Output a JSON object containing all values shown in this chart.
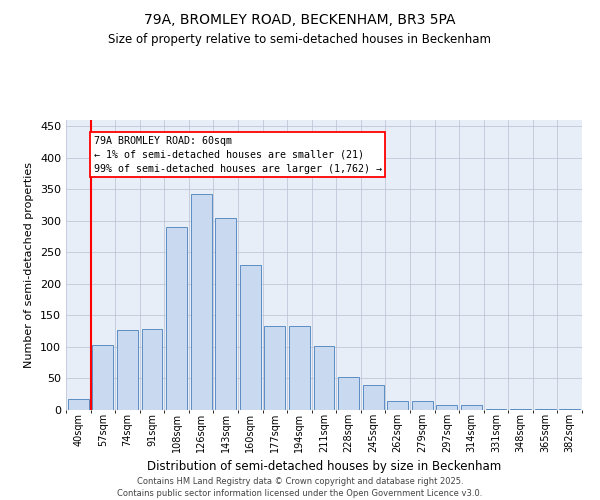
{
  "title1": "79A, BROMLEY ROAD, BECKENHAM, BR3 5PA",
  "title2": "Size of property relative to semi-detached houses in Beckenham",
  "xlabel": "Distribution of semi-detached houses by size in Beckenham",
  "ylabel": "Number of semi-detached properties",
  "categories": [
    "40sqm",
    "57sqm",
    "74sqm",
    "91sqm",
    "108sqm",
    "126sqm",
    "143sqm",
    "160sqm",
    "177sqm",
    "194sqm",
    "211sqm",
    "228sqm",
    "245sqm",
    "262sqm",
    "279sqm",
    "297sqm",
    "314sqm",
    "331sqm",
    "348sqm",
    "365sqm",
    "382sqm"
  ],
  "bar_data": [
    18,
    103,
    127,
    128,
    290,
    342,
    305,
    230,
    133,
    133,
    101,
    52,
    40,
    14,
    14,
    8,
    8,
    2,
    2,
    2,
    2
  ],
  "annotation_title": "79A BROMLEY ROAD: 60sqm",
  "annotation_line1": "← 1% of semi-detached houses are smaller (21)",
  "annotation_line2": "99% of semi-detached houses are larger (1,762) →",
  "vline_x_index": 1,
  "bar_color": "#c9d9ef",
  "bar_edge_color": "#5b8ec4",
  "vline_color": "red",
  "grid_color": "#c0c8d8",
  "bg_color": "#e8eef8",
  "footer": "Contains HM Land Registry data © Crown copyright and database right 2025.\nContains public sector information licensed under the Open Government Licence v3.0.",
  "ylim": [
    0,
    460
  ],
  "yticks": [
    0,
    50,
    100,
    150,
    200,
    250,
    300,
    350,
    400,
    450
  ]
}
